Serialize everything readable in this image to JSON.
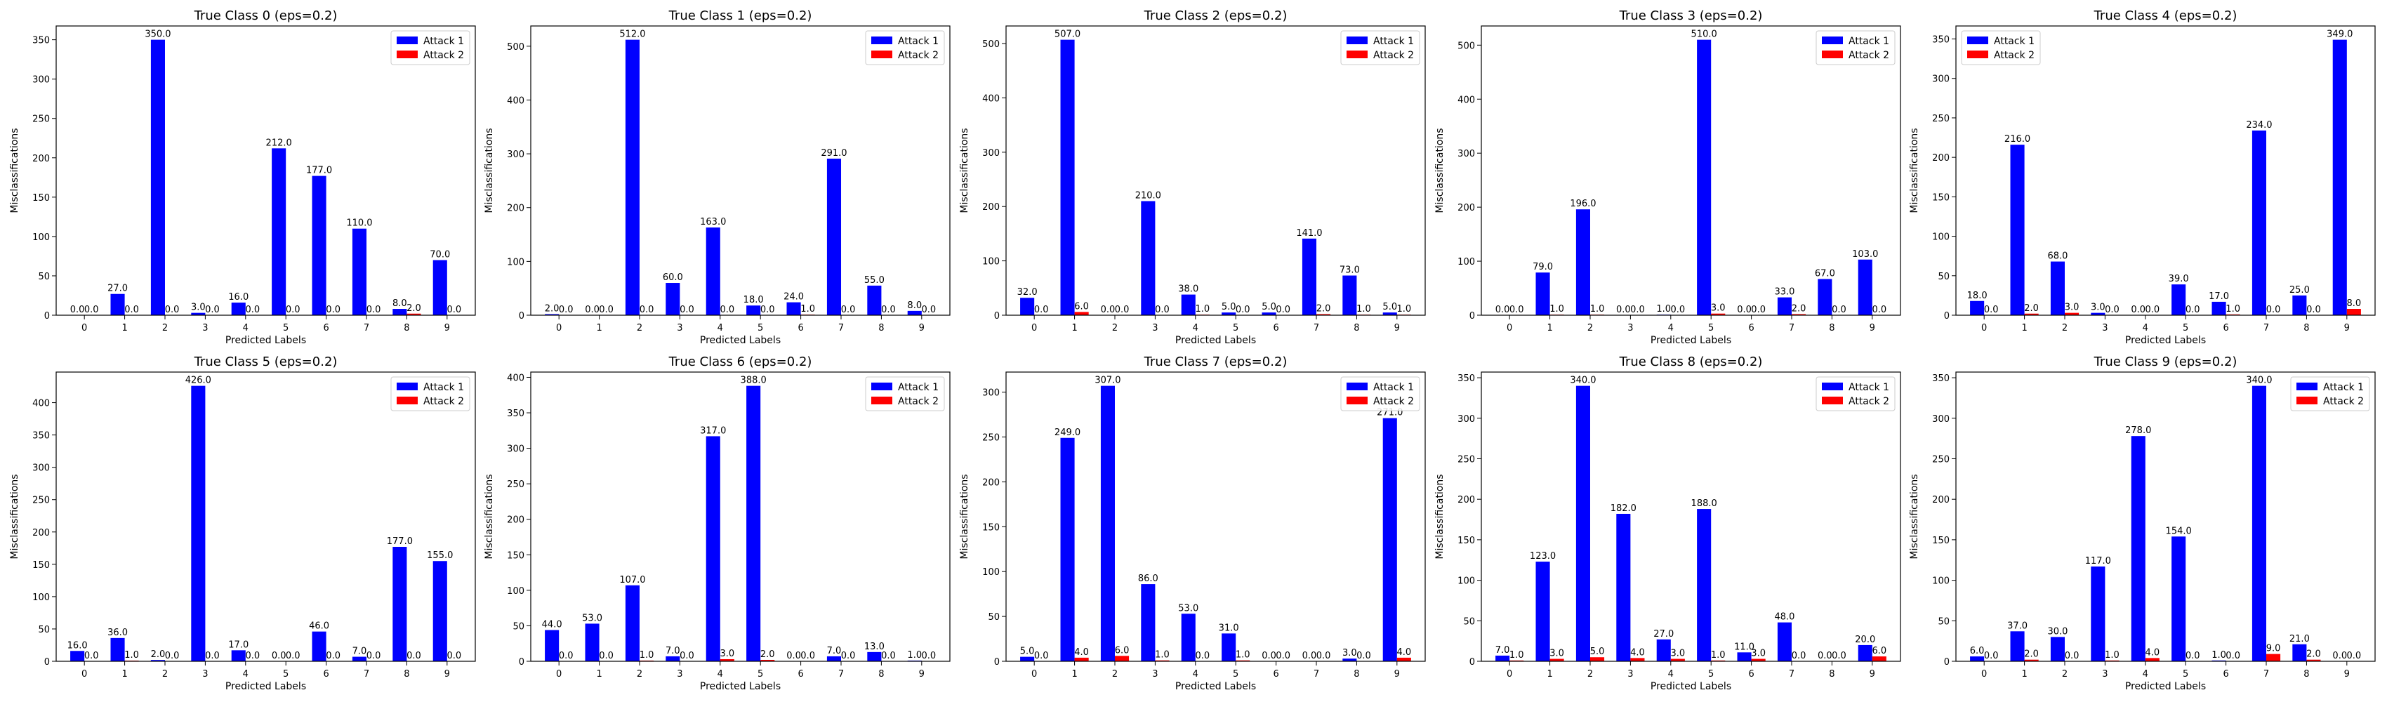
{
  "chart_data": [
    {
      "type": "bar",
      "title": "True Class 0 (eps=0.2)",
      "xlabel": "Predicted Labels",
      "ylabel": "Misclassifications",
      "categories": [
        "0",
        "1",
        "2",
        "3",
        "4",
        "5",
        "6",
        "7",
        "8",
        "9"
      ],
      "ylim": [
        0,
        367.5
      ],
      "yticks": [
        0,
        50,
        100,
        150,
        200,
        250,
        300,
        350
      ],
      "legend_position": "upper right",
      "series": [
        {
          "name": "Attack 1",
          "color": "#0000ff",
          "values": [
            0,
            27,
            350,
            3,
            16,
            212,
            177,
            110,
            8,
            70
          ]
        },
        {
          "name": "Attack 2",
          "color": "#ff0000",
          "values": [
            0,
            0,
            0,
            0,
            0,
            0,
            0,
            0,
            2,
            0
          ]
        }
      ]
    },
    {
      "type": "bar",
      "title": "True Class 1 (eps=0.2)",
      "xlabel": "Predicted Labels",
      "ylabel": "Misclassifications",
      "categories": [
        "0",
        "1",
        "2",
        "3",
        "4",
        "5",
        "6",
        "7",
        "8",
        "9"
      ],
      "ylim": [
        0,
        537.6
      ],
      "yticks": [
        0,
        100,
        200,
        300,
        400,
        500
      ],
      "legend_position": "upper right",
      "series": [
        {
          "name": "Attack 1",
          "color": "#0000ff",
          "values": [
            2,
            0,
            512,
            60,
            163,
            18,
            24,
            291,
            55,
            8
          ]
        },
        {
          "name": "Attack 2",
          "color": "#ff0000",
          "values": [
            0,
            0,
            0,
            0,
            0,
            0,
            1,
            0,
            0,
            0
          ]
        }
      ]
    },
    {
      "type": "bar",
      "title": "True Class 2 (eps=0.2)",
      "xlabel": "Predicted Labels",
      "ylabel": "Misclassifications",
      "categories": [
        "0",
        "1",
        "2",
        "3",
        "4",
        "5",
        "6",
        "7",
        "8",
        "9"
      ],
      "ylim": [
        0,
        532.35
      ],
      "yticks": [
        0,
        100,
        200,
        300,
        400,
        500
      ],
      "legend_position": "upper right",
      "series": [
        {
          "name": "Attack 1",
          "color": "#0000ff",
          "values": [
            32,
            507,
            0,
            210,
            38,
            5,
            5,
            141,
            73,
            5
          ]
        },
        {
          "name": "Attack 2",
          "color": "#ff0000",
          "values": [
            0,
            6,
            0,
            0,
            1,
            0,
            0,
            2,
            1,
            1
          ]
        }
      ]
    },
    {
      "type": "bar",
      "title": "True Class 3 (eps=0.2)",
      "xlabel": "Predicted Labels",
      "ylabel": "Misclassifications",
      "categories": [
        "0",
        "1",
        "2",
        "3",
        "4",
        "5",
        "6",
        "7",
        "8",
        "9"
      ],
      "ylim": [
        0,
        535.5
      ],
      "yticks": [
        0,
        100,
        200,
        300,
        400,
        500
      ],
      "legend_position": "upper right",
      "series": [
        {
          "name": "Attack 1",
          "color": "#0000ff",
          "values": [
            0,
            79,
            196,
            0,
            1,
            510,
            0,
            33,
            67,
            103
          ]
        },
        {
          "name": "Attack 2",
          "color": "#ff0000",
          "values": [
            0,
            1,
            1,
            0,
            0,
            3,
            0,
            2,
            0,
            0
          ]
        }
      ]
    },
    {
      "type": "bar",
      "title": "True Class 4 (eps=0.2)",
      "xlabel": "Predicted Labels",
      "ylabel": "Misclassifications",
      "categories": [
        "0",
        "1",
        "2",
        "3",
        "4",
        "5",
        "6",
        "7",
        "8",
        "9"
      ],
      "ylim": [
        0,
        366.45
      ],
      "yticks": [
        0,
        50,
        100,
        150,
        200,
        250,
        300,
        350
      ],
      "legend_position": "upper left",
      "series": [
        {
          "name": "Attack 1",
          "color": "#0000ff",
          "values": [
            18,
            216,
            68,
            3,
            0,
            39,
            17,
            234,
            25,
            349
          ]
        },
        {
          "name": "Attack 2",
          "color": "#ff0000",
          "values": [
            0,
            2,
            3,
            0,
            0,
            0,
            1,
            0,
            0,
            8
          ]
        }
      ]
    },
    {
      "type": "bar",
      "title": "True Class 5 (eps=0.2)",
      "xlabel": "Predicted Labels",
      "ylabel": "Misclassifications",
      "categories": [
        "0",
        "1",
        "2",
        "3",
        "4",
        "5",
        "6",
        "7",
        "8",
        "9"
      ],
      "ylim": [
        0,
        447.3
      ],
      "yticks": [
        0,
        50,
        100,
        150,
        200,
        250,
        300,
        350,
        400
      ],
      "legend_position": "upper right",
      "series": [
        {
          "name": "Attack 1",
          "color": "#0000ff",
          "values": [
            16,
            36,
            2,
            426,
            17,
            0,
            46,
            7,
            177,
            155
          ]
        },
        {
          "name": "Attack 2",
          "color": "#ff0000",
          "values": [
            0,
            1,
            0,
            0,
            0,
            0,
            0,
            0,
            0,
            0
          ]
        }
      ]
    },
    {
      "type": "bar",
      "title": "True Class 6 (eps=0.2)",
      "xlabel": "Predicted Labels",
      "ylabel": "Misclassifications",
      "categories": [
        "0",
        "1",
        "2",
        "3",
        "4",
        "5",
        "6",
        "7",
        "8",
        "9"
      ],
      "ylim": [
        0,
        407.4
      ],
      "yticks": [
        0,
        50,
        100,
        150,
        200,
        250,
        300,
        350,
        400
      ],
      "legend_position": "upper right",
      "series": [
        {
          "name": "Attack 1",
          "color": "#0000ff",
          "values": [
            44,
            53,
            107,
            7,
            317,
            388,
            0,
            7,
            13,
            1
          ]
        },
        {
          "name": "Attack 2",
          "color": "#ff0000",
          "values": [
            0,
            0,
            1,
            0,
            3,
            2,
            0,
            0,
            0,
            0
          ]
        }
      ]
    },
    {
      "type": "bar",
      "title": "True Class 7 (eps=0.2)",
      "xlabel": "Predicted Labels",
      "ylabel": "Misclassifications",
      "categories": [
        "0",
        "1",
        "2",
        "3",
        "4",
        "5",
        "6",
        "7",
        "8",
        "9"
      ],
      "ylim": [
        0,
        322.35
      ],
      "yticks": [
        0,
        50,
        100,
        150,
        200,
        250,
        300
      ],
      "legend_position": "upper right",
      "series": [
        {
          "name": "Attack 1",
          "color": "#0000ff",
          "values": [
            5,
            249,
            307,
            86,
            53,
            31,
            0,
            0,
            3,
            271
          ]
        },
        {
          "name": "Attack 2",
          "color": "#ff0000",
          "values": [
            0,
            4,
            6,
            1,
            0,
            1,
            0,
            0,
            0,
            4
          ]
        }
      ]
    },
    {
      "type": "bar",
      "title": "True Class 8 (eps=0.2)",
      "xlabel": "Predicted Labels",
      "ylabel": "Misclassifications",
      "categories": [
        "0",
        "1",
        "2",
        "3",
        "4",
        "5",
        "6",
        "7",
        "8",
        "9"
      ],
      "ylim": [
        0,
        357
      ],
      "yticks": [
        0,
        50,
        100,
        150,
        200,
        250,
        300,
        350
      ],
      "legend_position": "upper right",
      "series": [
        {
          "name": "Attack 1",
          "color": "#0000ff",
          "values": [
            7,
            123,
            340,
            182,
            27,
            188,
            11,
            48,
            0,
            20
          ]
        },
        {
          "name": "Attack 2",
          "color": "#ff0000",
          "values": [
            1,
            3,
            5,
            4,
            3,
            1,
            3,
            0,
            0,
            6
          ]
        }
      ]
    },
    {
      "type": "bar",
      "title": "True Class 9 (eps=0.2)",
      "xlabel": "Predicted Labels",
      "ylabel": "Misclassifications",
      "categories": [
        "0",
        "1",
        "2",
        "3",
        "4",
        "5",
        "6",
        "7",
        "8",
        "9"
      ],
      "ylim": [
        0,
        357
      ],
      "yticks": [
        0,
        50,
        100,
        150,
        200,
        250,
        300,
        350
      ],
      "legend_position": "upper right",
      "series": [
        {
          "name": "Attack 1",
          "color": "#0000ff",
          "values": [
            6,
            37,
            30,
            117,
            278,
            154,
            1,
            340,
            21,
            0
          ]
        },
        {
          "name": "Attack 2",
          "color": "#ff0000",
          "values": [
            0,
            2,
            0,
            1,
            4,
            0,
            0,
            9,
            2,
            0
          ]
        }
      ]
    }
  ]
}
